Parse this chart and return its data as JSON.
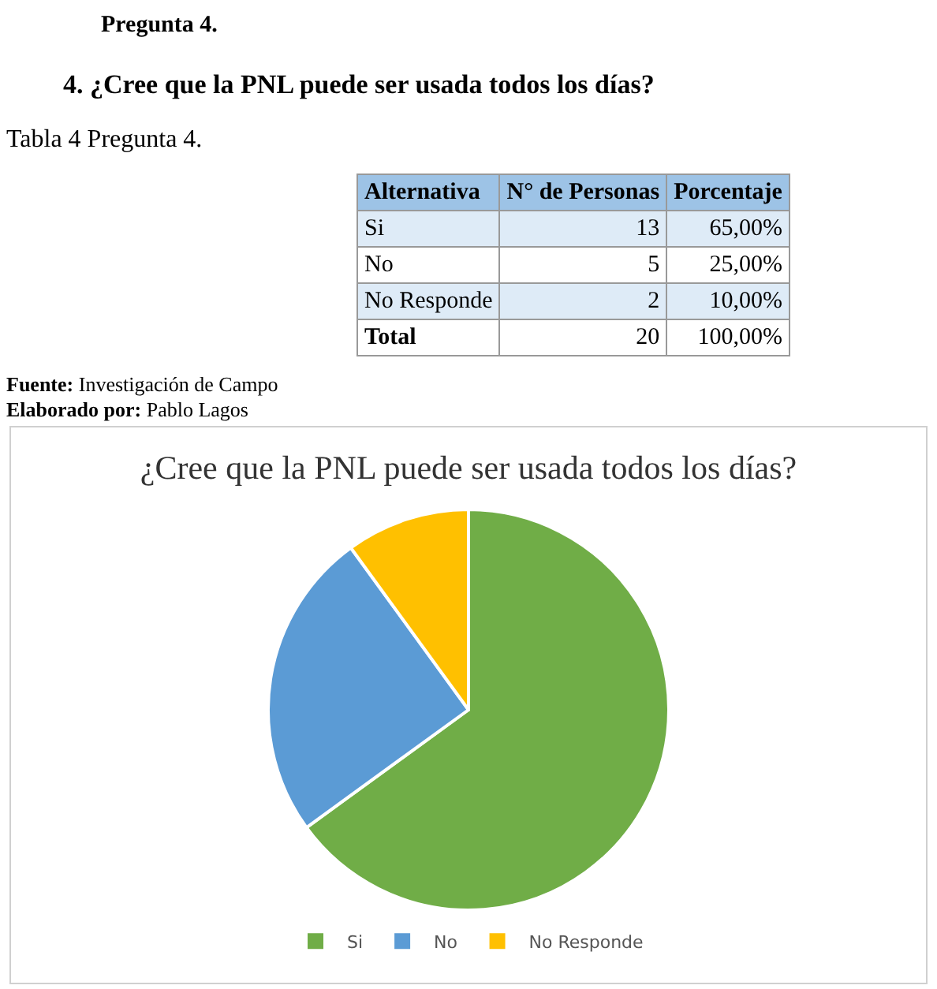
{
  "chart_data": {
    "type": "pie",
    "title": "¿Cree que la PNL puede ser usada todos los días?",
    "categories": [
      "Si",
      "No",
      "No Responde"
    ],
    "values": [
      65,
      25,
      10
    ],
    "colors": [
      "#70ad47",
      "#5b9bd5",
      "#ffc000"
    ],
    "annotations": [
      "Pregunta 4.",
      "4.   ¿Cree que la PNL puede ser usada todos los días?",
      "Tabla 4 Pregunta 4.",
      "Fuente: Investigación de Campo",
      "Elaborado por: Pablo Lagos",
      "Alternativa",
      "N° de Personas",
      "Porcentaje",
      "Si",
      "13",
      "65,00%",
      "No",
      "5",
      "25,00%",
      "No Responde",
      "2",
      "10,00%",
      "Total",
      "20",
      "100,00%"
    ],
    "legend": "bottom"
  }
}
